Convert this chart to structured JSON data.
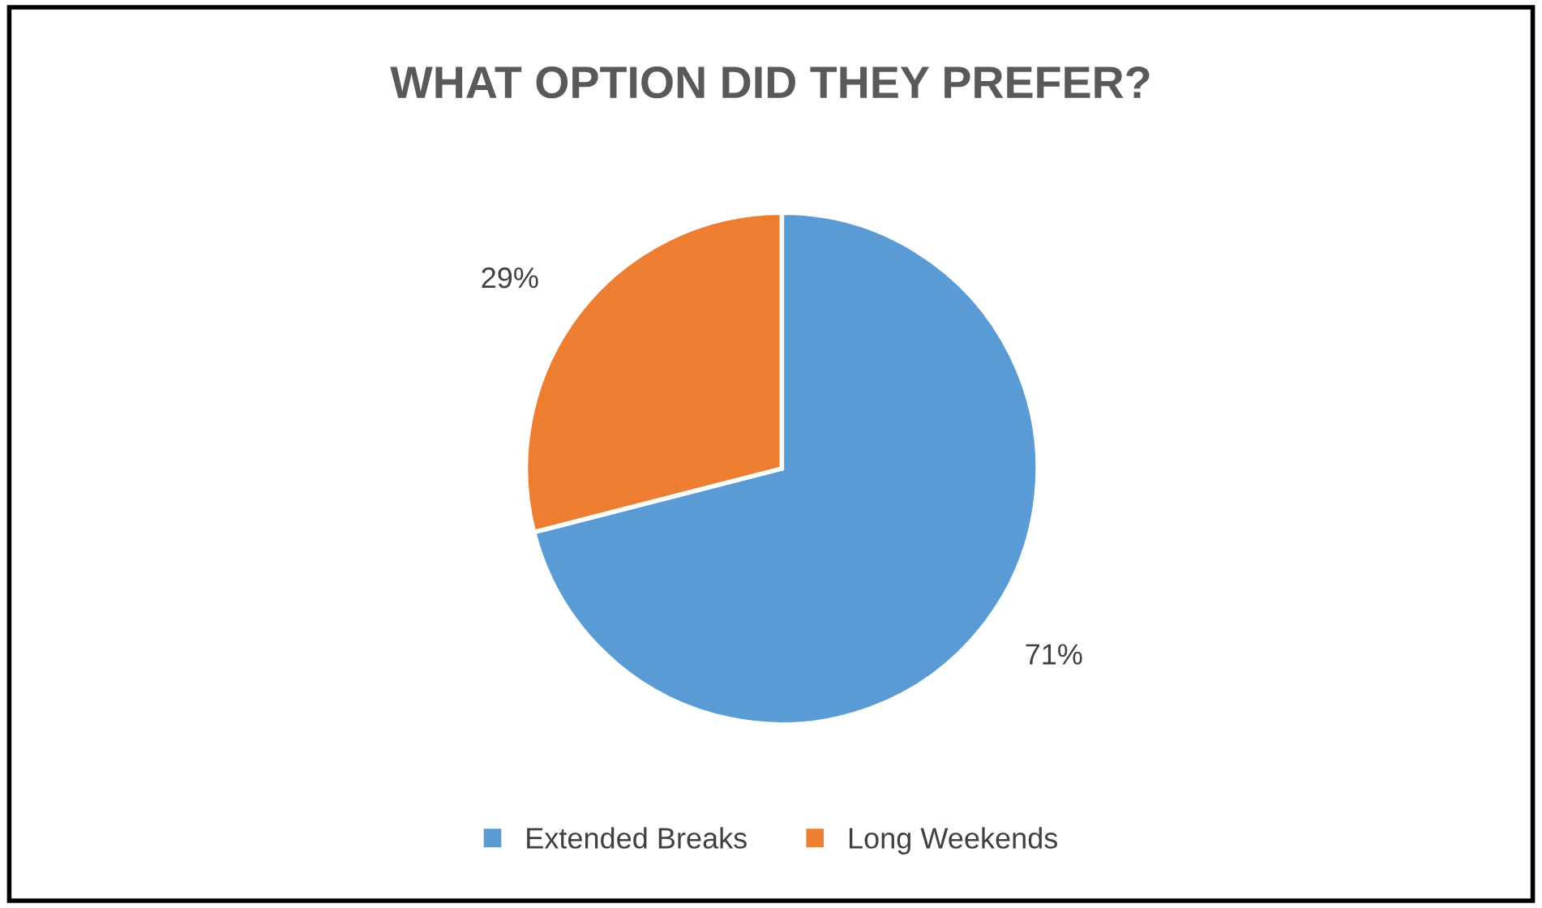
{
  "chart_data": {
    "type": "pie",
    "title": "WHAT OPTION DID THEY PREFER?",
    "categories": [
      "Extended Breaks",
      "Long Weekends"
    ],
    "values": [
      71,
      29
    ],
    "colors": [
      "#5b9bd5",
      "#ed7d31"
    ],
    "value_labels": [
      "71%",
      "29%"
    ],
    "legend": "bottom"
  }
}
